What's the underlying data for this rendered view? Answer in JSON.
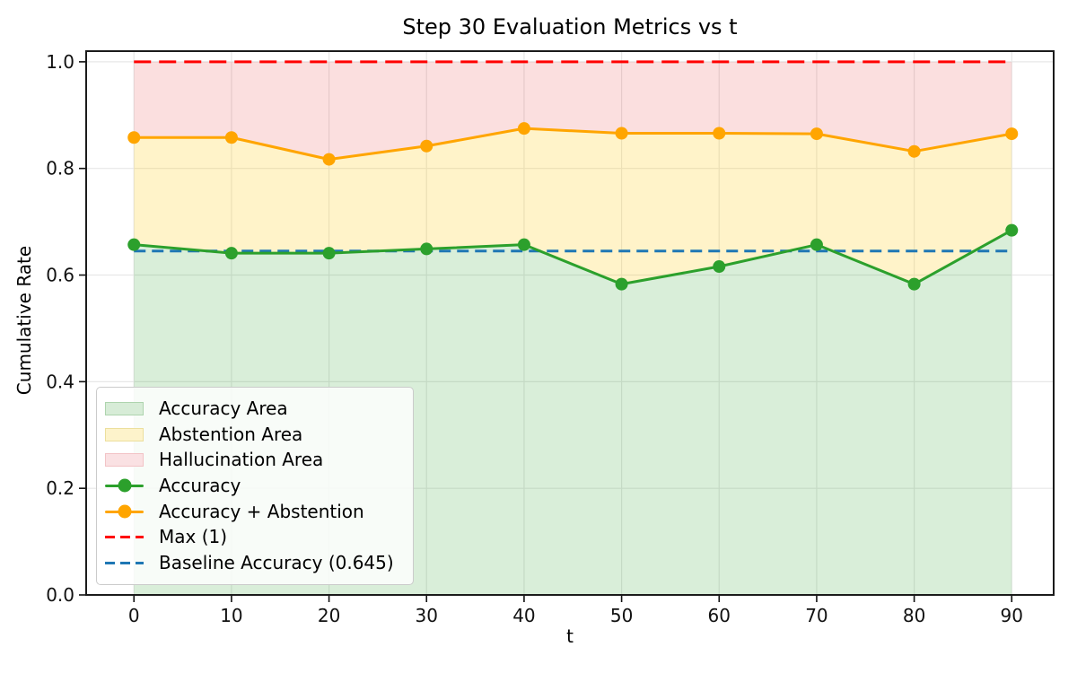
{
  "chart_data": {
    "type": "line",
    "title": "Step 30 Evaluation Metrics vs t",
    "xlabel": "t",
    "ylabel": "Cumulative Rate",
    "x": [
      0,
      10,
      20,
      30,
      40,
      50,
      60,
      70,
      80,
      90
    ],
    "x_tick_labels": [
      "0",
      "10",
      "20",
      "30",
      "40",
      "50",
      "60",
      "70",
      "80",
      "90"
    ],
    "y_ticks": [
      0.0,
      0.2,
      0.4,
      0.6,
      0.8,
      1.0
    ],
    "y_tick_labels": [
      "0.0",
      "0.2",
      "0.4",
      "0.6",
      "0.8",
      "1.0"
    ],
    "xlim": [
      -4.9,
      94.3
    ],
    "ylim": [
      0,
      1.02
    ],
    "grid": true,
    "series": [
      {
        "name": "Accuracy",
        "color": "#2ca02c",
        "marker": "circle",
        "values": [
          0.657,
          0.641,
          0.641,
          0.649,
          0.657,
          0.583,
          0.616,
          0.657,
          0.583,
          0.684
        ]
      },
      {
        "name": "Accuracy + Abstention",
        "color": "#ffa500",
        "marker": "circle",
        "values": [
          0.858,
          0.858,
          0.817,
          0.842,
          0.875,
          0.866,
          0.866,
          0.865,
          0.832,
          0.865
        ]
      }
    ],
    "reference_lines": [
      {
        "name": "Max (1)",
        "y": 1.0,
        "color": "#ff0000",
        "style": "dashed"
      },
      {
        "name": "Baseline Accuracy (0.645)",
        "y": 0.645,
        "color": "#1f77b4",
        "style": "dashed"
      }
    ],
    "areas": [
      {
        "name": "Accuracy Area",
        "from": "0",
        "to": "Accuracy",
        "fill": "rgba(44,160,44,0.18)"
      },
      {
        "name": "Abstention Area",
        "from": "Accuracy",
        "to": "Accuracy + Abstention",
        "fill": "rgba(255,200,10,0.22)"
      },
      {
        "name": "Hallucination Area",
        "from": "Accuracy + Abstention",
        "to": "1",
        "fill": "rgba(228,26,28,0.14)"
      }
    ],
    "legend": {
      "position": "lower left",
      "items": [
        {
          "label": "Accuracy Area",
          "swatch": "patch",
          "color": "#2ca02c",
          "swatch_fill": "#d7ecd7",
          "swatch_border": "#aed4ae"
        },
        {
          "label": "Abstention Area",
          "swatch": "patch",
          "color": "#e6c229",
          "swatch_fill": "#fdf3cb",
          "swatch_border": "#ecdf9d"
        },
        {
          "label": "Hallucination Area",
          "swatch": "patch",
          "color": "#e41a1c",
          "swatch_fill": "#fae1e3",
          "swatch_border": "#f2c3c6"
        },
        {
          "label": "Accuracy",
          "swatch": "line-marker",
          "color": "#2ca02c"
        },
        {
          "label": "Accuracy + Abstention",
          "swatch": "line-marker",
          "color": "#ffa500"
        },
        {
          "label": "Max (1)",
          "swatch": "dashed",
          "color": "#ff0000"
        },
        {
          "label": "Baseline Accuracy (0.645)",
          "swatch": "dashed",
          "color": "#1f77b4"
        }
      ]
    },
    "colors": {
      "accuracy_line": "#2ca02c",
      "abstention_line": "#ffa500",
      "max_line": "#ff0000",
      "baseline_line": "#1f77b4",
      "grid": "#e7e7e7",
      "spine": "#1b1b1b"
    }
  }
}
